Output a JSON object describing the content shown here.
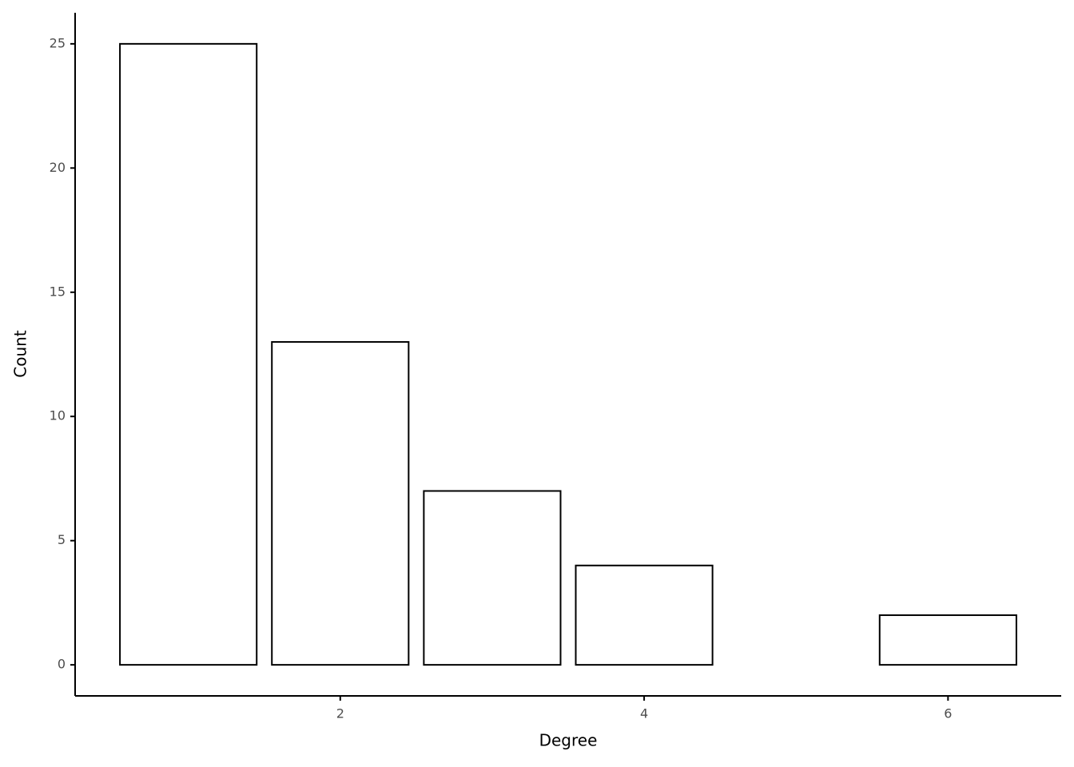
{
  "chart_data": {
    "type": "bar",
    "x": [
      1,
      2,
      3,
      4,
      6
    ],
    "values": [
      25,
      13,
      7,
      4,
      2
    ],
    "fill": "#ffffff",
    "stroke": "#000000",
    "xlim": [
      0.255,
      6.745
    ],
    "xticks": [
      2,
      4,
      6
    ],
    "ylim": [
      -1.25,
      26.25
    ],
    "yticks": [
      0,
      5,
      10,
      15,
      20,
      25
    ],
    "xlabel": "Degree",
    "ylabel": "Count",
    "grid": false
  }
}
